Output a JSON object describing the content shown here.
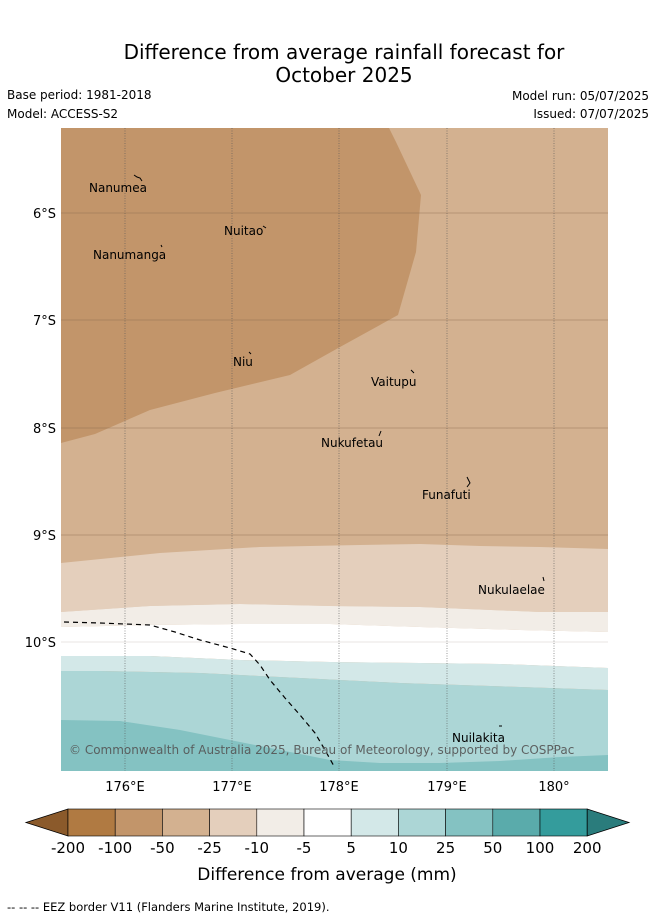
{
  "title_line1": "Difference from average rainfall forecast for",
  "title_line2": "October 2025",
  "base_period": "Base period: 1981-2018",
  "model": "Model: ACCESS-S2",
  "model_run": "Model run: 05/07/2025",
  "issued": "Issued: 07/07/2025",
  "copyright": "© Commonwealth of Australia 2025, Bureau of Meteorology, supported by COSPPac",
  "lon_ticks": [
    "176°E",
    "177°E",
    "178°E",
    "179°E",
    "180°"
  ],
  "lat_ticks": [
    "6°S",
    "7°S",
    "8°S",
    "9°S",
    "10°S"
  ],
  "places": [
    {
      "name": "Nanumea"
    },
    {
      "name": "Nuitao"
    },
    {
      "name": "Nanumanga"
    },
    {
      "name": "Niu"
    },
    {
      "name": "Vaitupu"
    },
    {
      "name": "Nukufetau"
    },
    {
      "name": "Funafuti"
    },
    {
      "name": "Nukulaelae"
    },
    {
      "name": "Nuilakita"
    }
  ],
  "colorbar": {
    "labels": [
      "-200",
      "-100",
      "-50",
      "-25",
      "-10",
      "-5",
      "5",
      "10",
      "25",
      "50",
      "100",
      "200"
    ],
    "colors": [
      "#8b5a2b",
      "#b07a42",
      "#c2956a",
      "#d3b190",
      "#e4cfbc",
      "#f2ede7",
      "#ffffff",
      "#d3e8e8",
      "#acd6d6",
      "#84c2c2",
      "#5aabab",
      "#349c9c",
      "#2a7c7c"
    ],
    "title": "Difference from average (mm)"
  },
  "footer": "-- -- -- EEZ border V11 (Flanders Marine Institute, 2019)."
}
